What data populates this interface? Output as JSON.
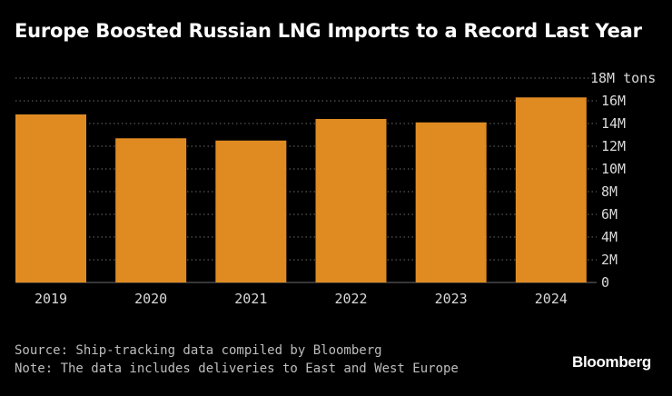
{
  "title": "Europe Boosted Russian LNG Imports to a Record Last Year",
  "footer": {
    "source": "Source: Ship-tracking data compiled by Bloomberg",
    "note": "Note: The data includes deliveries to East and West Europe"
  },
  "brand": "Bloomberg",
  "colors": {
    "background": "#000000",
    "bar": "#e08b22",
    "text": "#ffffff",
    "muted": "#bdbdbd",
    "grid": "#6b6b6b"
  },
  "chart_data": {
    "type": "bar",
    "title": "Europe Boosted Russian LNG Imports to a Record Last Year",
    "categories": [
      "2019",
      "2020",
      "2021",
      "2022",
      "2023",
      "2024"
    ],
    "values": [
      14.8,
      12.7,
      12.5,
      14.4,
      14.1,
      16.3
    ],
    "unit": "M tons",
    "ylim": [
      0,
      18
    ],
    "yticks": [
      0,
      2,
      4,
      6,
      8,
      10,
      12,
      14,
      16,
      18
    ],
    "ytick_labels": [
      "0",
      "2M",
      "4M",
      "6M",
      "8M",
      "10M",
      "12M",
      "14M",
      "16M",
      "18M tons"
    ],
    "xlabel": "",
    "ylabel": "",
    "grid": true,
    "axis_side": "right"
  }
}
